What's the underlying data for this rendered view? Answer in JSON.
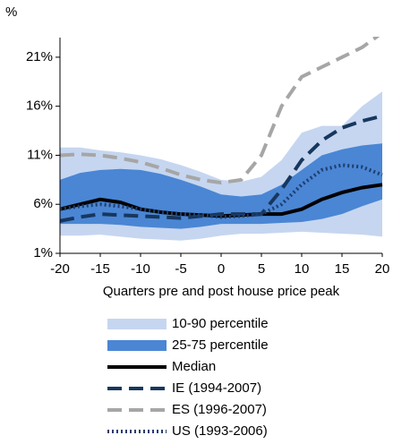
{
  "chart_data": {
    "type": "line",
    "y_label": "%",
    "x_label": "Quarters pre and post house price peak",
    "x": [
      -20,
      -17.5,
      -15,
      -12.5,
      -10,
      -7.5,
      -5,
      -2.5,
      0,
      2.5,
      5,
      7.5,
      10,
      12.5,
      15,
      17.5,
      20
    ],
    "xlim": [
      -20,
      20
    ],
    "xticks": [
      -20,
      -15,
      -10,
      -5,
      0,
      5,
      10,
      15,
      20
    ],
    "ylim": [
      1,
      23
    ],
    "yticks": [
      {
        "value": 1,
        "label": "1%"
      },
      {
        "value": 6,
        "label": "6%"
      },
      {
        "value": 11,
        "label": "11%"
      },
      {
        "value": 16,
        "label": "16%"
      },
      {
        "value": 21,
        "label": "21%"
      }
    ],
    "series": [
      {
        "name": "10-90 percentile",
        "kind": "band",
        "color": "#c6d6f0",
        "lower": [
          2.8,
          2.8,
          2.9,
          2.7,
          2.5,
          2.4,
          2.3,
          2.5,
          2.8,
          3,
          3,
          3.1,
          3.2,
          3.1,
          3,
          2.9,
          2.7
        ],
        "upper": [
          11.8,
          11.8,
          11.5,
          11.3,
          11,
          10.6,
          10,
          9.3,
          8.5,
          8.3,
          8.8,
          10.5,
          13.3,
          14,
          14,
          16,
          17.5
        ]
      },
      {
        "name": "25-75 percentile",
        "kind": "band",
        "color": "#4a86d4",
        "lower": [
          4,
          4,
          4,
          3.9,
          3.7,
          3.6,
          3.5,
          3.7,
          4,
          4,
          4,
          4.1,
          4.2,
          4.5,
          5,
          5.8,
          6.5
        ],
        "upper": [
          8.5,
          9.2,
          9.5,
          9.6,
          9.5,
          9.1,
          8.5,
          7.8,
          7,
          6.8,
          7,
          8,
          9.5,
          11,
          11.6,
          12,
          12.2
        ]
      },
      {
        "name": "Median",
        "kind": "line",
        "style": "solid",
        "color": "#000000",
        "values": [
          5.5,
          6,
          6.5,
          6.2,
          5.5,
          5.2,
          5,
          4.9,
          4.8,
          4.9,
          5,
          5,
          5.5,
          6.5,
          7.2,
          7.7,
          8
        ]
      },
      {
        "name": "IE (1994-2007)",
        "kind": "line",
        "style": "dashed",
        "color": "#17375e",
        "values": [
          4.3,
          4.7,
          5,
          4.9,
          4.8,
          4.7,
          4.6,
          4.8,
          5,
          5,
          5,
          7.5,
          10.5,
          12.5,
          13.8,
          14.5,
          15
        ]
      },
      {
        "name": "ES (1996-2007)",
        "kind": "line",
        "style": "dashed",
        "color": "#a6a6a6",
        "values": [
          11,
          11.1,
          11,
          10.7,
          10.3,
          9.7,
          9,
          8.5,
          8.2,
          8.5,
          11,
          16,
          19,
          20,
          21,
          22,
          23.5
        ]
      },
      {
        "name": "US (1993-2006)",
        "kind": "line",
        "style": "dotted",
        "color": "#1f3e6e",
        "values": [
          5.5,
          5.8,
          6,
          5.8,
          5.5,
          5.2,
          5,
          4.9,
          4.7,
          4.8,
          5,
          6,
          8,
          9.5,
          10,
          9.8,
          9
        ]
      }
    ]
  }
}
